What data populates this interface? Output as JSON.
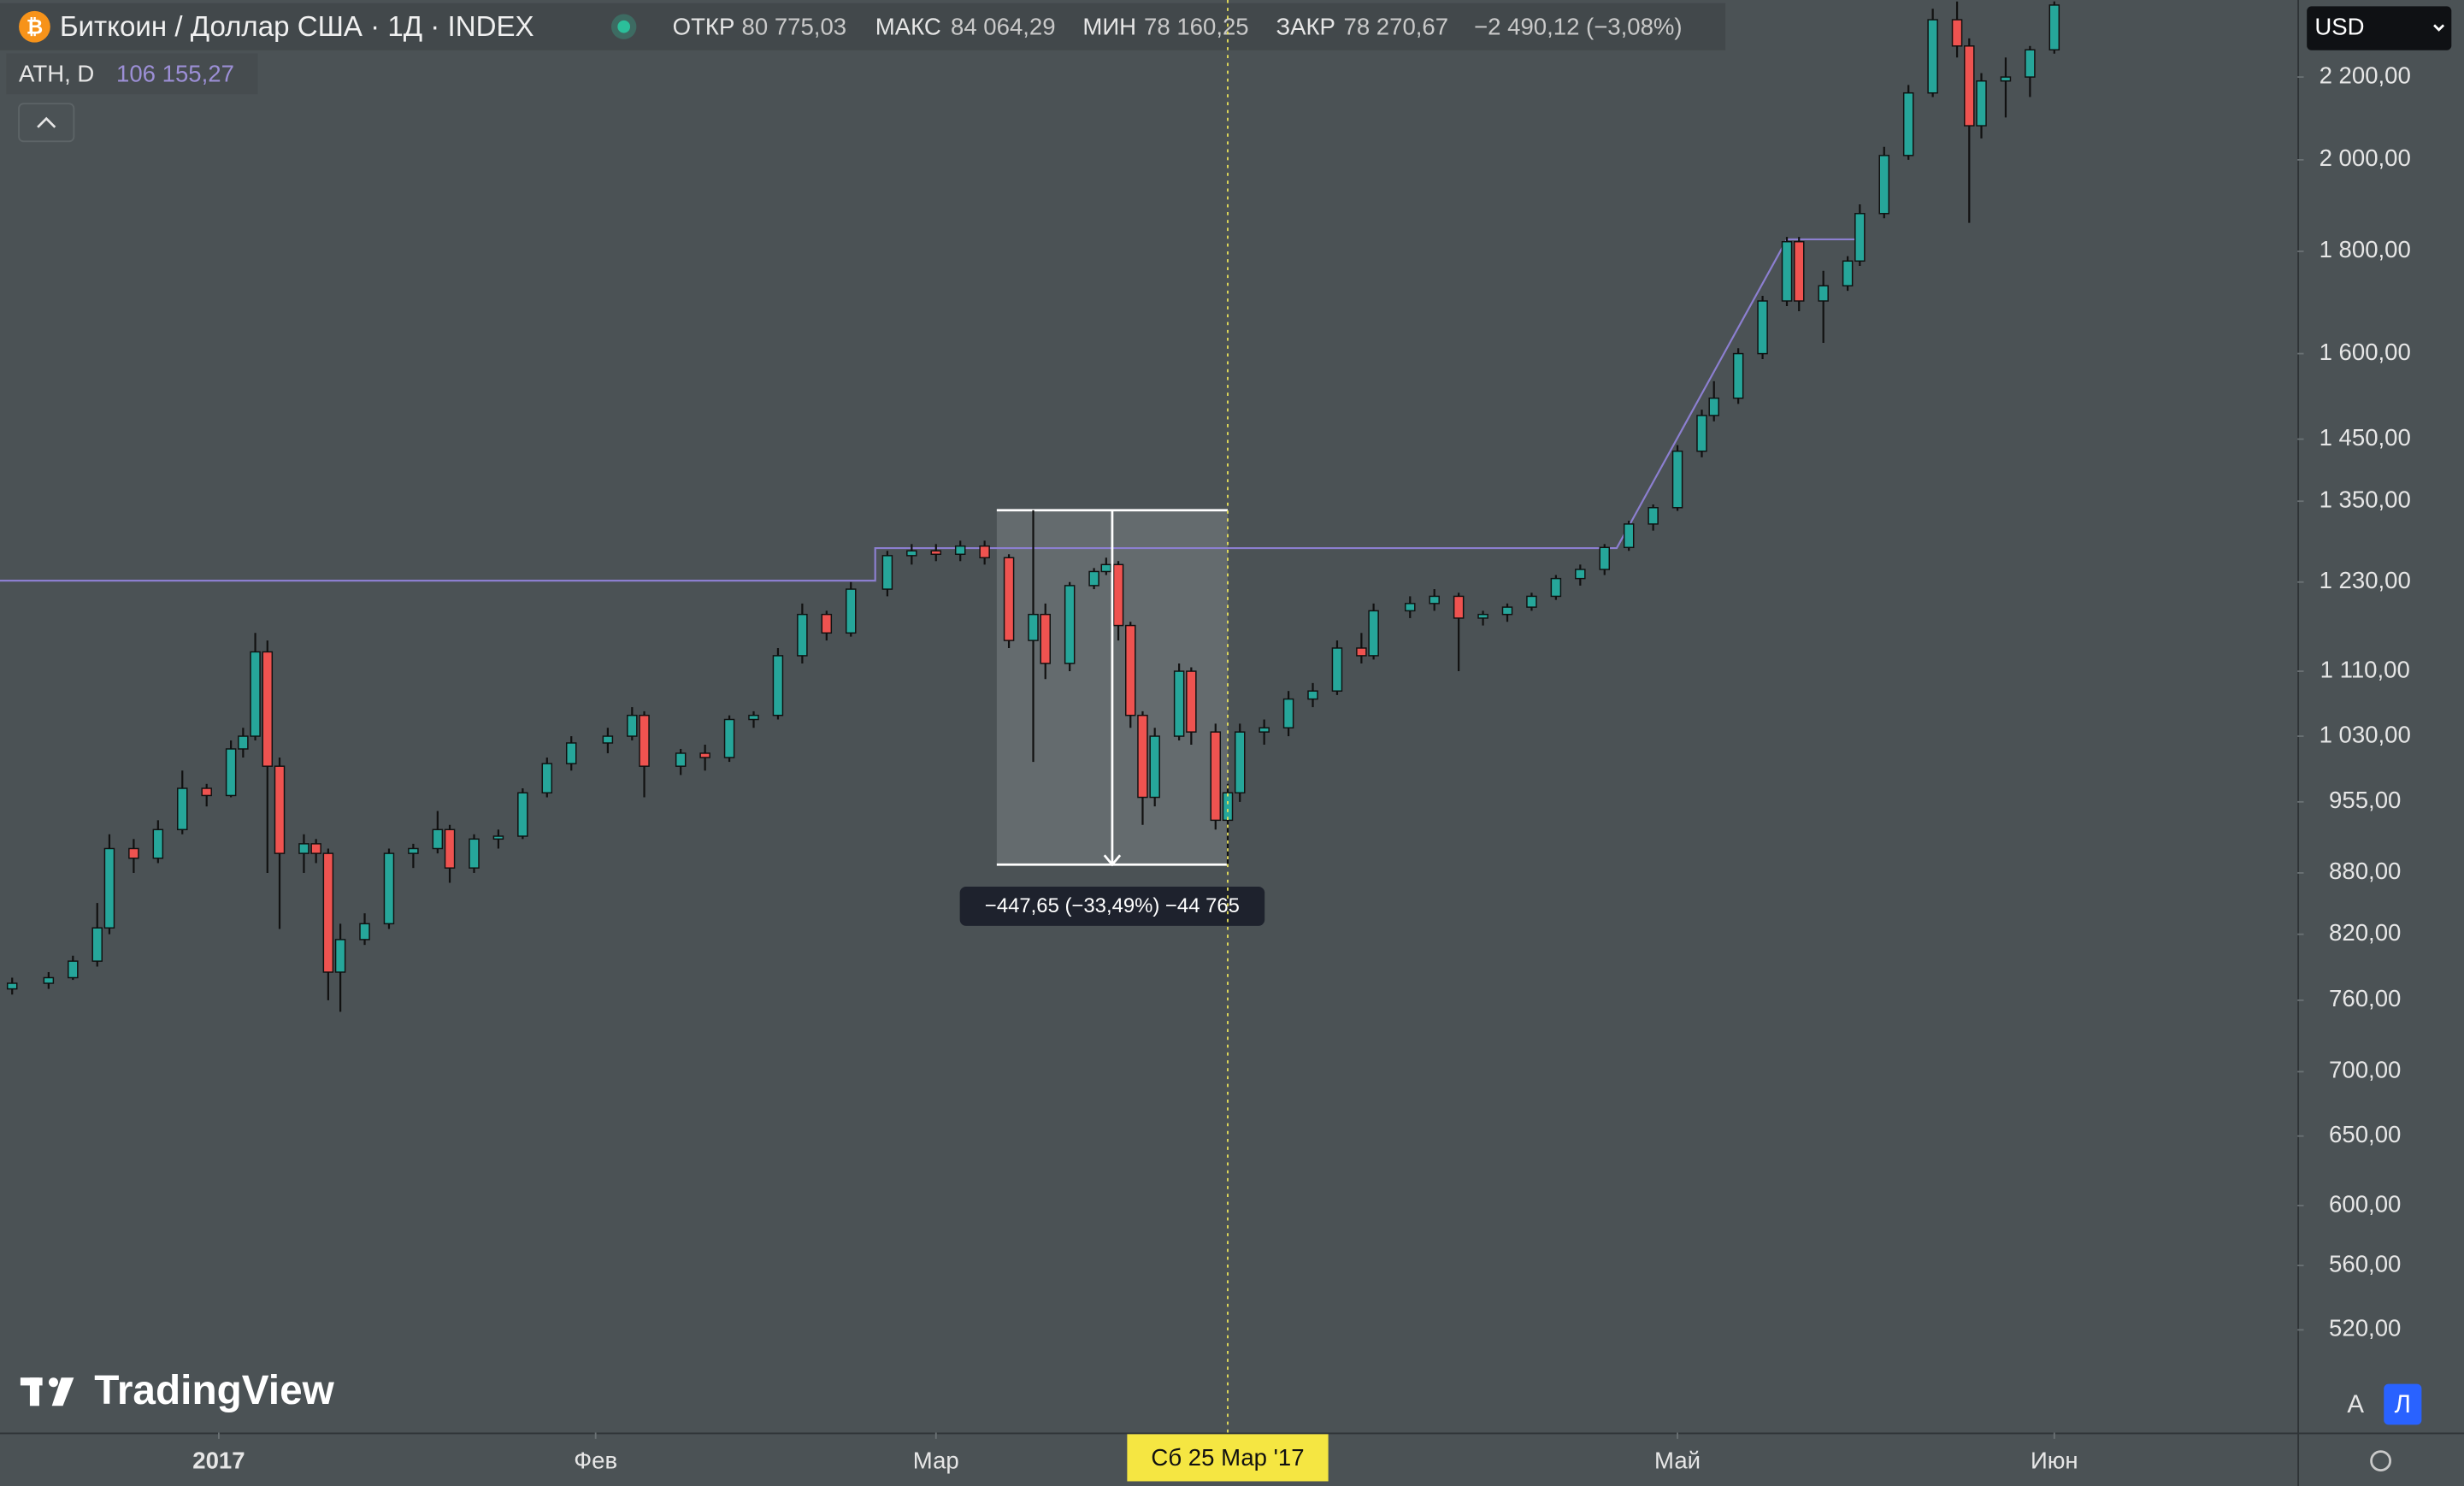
{
  "header": {
    "title": "Биткоин / Доллар США · 1Д · INDEX",
    "open_label": "ОТКР",
    "open": "80 775,03",
    "high_label": "МАКС",
    "high": "84 064,29",
    "low_label": "МИН",
    "low": "78 160,25",
    "close_label": "ЗАКР",
    "close": "78 270,67",
    "change": "−2 490,12 (−3,08%)",
    "indicator": "ATH, D",
    "indicator_value": "106 155,27",
    "currency": "USD",
    "logo": "TradingView",
    "auto": "A",
    "log": "Л"
  },
  "chart_data": {
    "type": "candlestick",
    "log_scale": true,
    "up_color": "#26a69a",
    "down_color": "#ef5350",
    "xlim": [
      "2016-12-14",
      "2017-06-21"
    ],
    "xticks": [
      {
        "value": "2017-01-01",
        "label": "2017"
      },
      {
        "value": "2017-02-01",
        "label": "Фев"
      },
      {
        "value": "2017-03-01",
        "label": "Мар"
      },
      {
        "value": "2017-05-01",
        "label": "Май"
      },
      {
        "value": "2017-06-01",
        "label": "Июн"
      }
    ],
    "ylim": [
      462,
      2404
    ],
    "yticks": [
      {
        "value": 2200,
        "label": "2 200,00"
      },
      {
        "value": 2000,
        "label": "2 000,00"
      },
      {
        "value": 1800,
        "label": "1 800,00"
      },
      {
        "value": 1600,
        "label": "1 600,00"
      },
      {
        "value": 1450,
        "label": "1 450,00"
      },
      {
        "value": 1350,
        "label": "1 350,00"
      },
      {
        "value": 1230,
        "label": "1 230,00"
      },
      {
        "value": 1110,
        "label": "1 110,00"
      },
      {
        "value": 1030,
        "label": "1 030,00"
      },
      {
        "value": 955,
        "label": "955,00"
      },
      {
        "value": 880,
        "label": "880,00"
      },
      {
        "value": 820,
        "label": "820,00"
      },
      {
        "value": 760,
        "label": "760,00"
      },
      {
        "value": 700,
        "label": "700,00"
      },
      {
        "value": 650,
        "label": "650,00"
      },
      {
        "value": 600,
        "label": "600,00"
      },
      {
        "value": 560,
        "label": "560,00"
      },
      {
        "value": 520,
        "label": "520,00"
      }
    ],
    "x": [
      "2016-12-15",
      "2016-12-18",
      "2016-12-20",
      "2016-12-22",
      "2016-12-23",
      "2016-12-25",
      "2016-12-27",
      "2016-12-29",
      "2016-12-31",
      "2017-01-02",
      "2017-01-03",
      "2017-01-04",
      "2017-01-05",
      "2017-01-06",
      "2017-01-08",
      "2017-01-09",
      "2017-01-10",
      "2017-01-11",
      "2017-01-13",
      "2017-01-15",
      "2017-01-17",
      "2017-01-19",
      "2017-01-20",
      "2017-01-22",
      "2017-01-24",
      "2017-01-26",
      "2017-01-28",
      "2017-01-30",
      "2017-02-02",
      "2017-02-04",
      "2017-02-05",
      "2017-02-08",
      "2017-02-10",
      "2017-02-12",
      "2017-02-14",
      "2017-02-16",
      "2017-02-18",
      "2017-02-20",
      "2017-02-22",
      "2017-02-25",
      "2017-02-27",
      "2017-03-01",
      "2017-03-03",
      "2017-03-05",
      "2017-03-07",
      "2017-03-09",
      "2017-03-10",
      "2017-03-12",
      "2017-03-14",
      "2017-03-15",
      "2017-03-16",
      "2017-03-17",
      "2017-03-18",
      "2017-03-19",
      "2017-03-21",
      "2017-03-22",
      "2017-03-24",
      "2017-03-25",
      "2017-03-26",
      "2017-03-28",
      "2017-03-30",
      "2017-04-01",
      "2017-04-03",
      "2017-04-05",
      "2017-04-06",
      "2017-04-09",
      "2017-04-11",
      "2017-04-13",
      "2017-04-15",
      "2017-04-17",
      "2017-04-19",
      "2017-04-21",
      "2017-04-23",
      "2017-04-25",
      "2017-04-27",
      "2017-04-29",
      "2017-05-01",
      "2017-05-03",
      "2017-05-04",
      "2017-05-06",
      "2017-05-08",
      "2017-05-10",
      "2017-05-11",
      "2017-05-13",
      "2017-05-15",
      "2017-05-16",
      "2017-05-18",
      "2017-05-20",
      "2017-05-22",
      "2017-05-24",
      "2017-05-25",
      "2017-05-26",
      "2017-05-28",
      "2017-05-30",
      "2017-06-01"
    ],
    "open": [
      770,
      775,
      780,
      795,
      826,
      905,
      895,
      925,
      970,
      962,
      1015,
      1030,
      1135,
      995,
      900,
      910,
      900,
      785,
      815,
      830,
      900,
      905,
      925,
      885,
      915,
      918,
      965,
      998,
      1022,
      1030,
      1055,
      995,
      1010,
      1005,
      1050,
      1055,
      1130,
      1185,
      1160,
      1220,
      1268,
      1275,
      1270,
      1282,
      1265,
      1150,
      1185,
      1120,
      1225,
      1245,
      1255,
      1170,
      1055,
      960,
      1030,
      1110,
      1035,
      935,
      965,
      1035,
      1040,
      1075,
      1085,
      1140,
      1130,
      1190,
      1200,
      1210,
      1180,
      1185,
      1195,
      1210,
      1235,
      1248,
      1280,
      1315,
      1340,
      1430,
      1490,
      1520,
      1600,
      1700,
      1820,
      1700,
      1730,
      1780,
      1880,
      2010,
      2160,
      2350,
      2280,
      2080,
      2190,
      2200,
      2270
    ],
    "high": [
      780,
      785,
      800,
      850,
      920,
      915,
      935,
      990,
      975,
      1025,
      1040,
      1160,
      1150,
      1005,
      920,
      915,
      905,
      830,
      840,
      905,
      910,
      945,
      930,
      920,
      925,
      970,
      1005,
      1030,
      1040,
      1065,
      1060,
      1015,
      1020,
      1055,
      1060,
      1140,
      1200,
      1190,
      1230,
      1275,
      1285,
      1285,
      1290,
      1290,
      1270,
      1336,
      1200,
      1230,
      1250,
      1265,
      1260,
      1175,
      1060,
      1040,
      1120,
      1115,
      1045,
      975,
      1045,
      1050,
      1085,
      1095,
      1150,
      1160,
      1200,
      1210,
      1220,
      1215,
      1190,
      1200,
      1215,
      1240,
      1255,
      1285,
      1320,
      1345,
      1440,
      1500,
      1550,
      1610,
      1710,
      1830,
      1830,
      1760,
      1790,
      1900,
      2030,
      2180,
      2380,
      2400,
      2300,
      2210,
      2250,
      2280,
      2400
    ],
    "low": [
      765,
      770,
      778,
      790,
      820,
      880,
      890,
      920,
      950,
      960,
      1005,
      1025,
      880,
      825,
      880,
      890,
      760,
      750,
      810,
      825,
      885,
      900,
      870,
      880,
      905,
      915,
      960,
      990,
      1010,
      1025,
      960,
      985,
      990,
      1000,
      1040,
      1050,
      1120,
      1150,
      1155,
      1210,
      1255,
      1260,
      1260,
      1255,
      1140,
      1000,
      1100,
      1110,
      1220,
      1240,
      1150,
      1040,
      930,
      950,
      1025,
      1020,
      925,
      888,
      955,
      1020,
      1030,
      1065,
      1080,
      1120,
      1125,
      1180,
      1190,
      1110,
      1170,
      1175,
      1190,
      1205,
      1225,
      1240,
      1275,
      1305,
      1335,
      1420,
      1480,
      1510,
      1590,
      1690,
      1680,
      1620,
      1720,
      1770,
      1870,
      2000,
      2150,
      2250,
      1860,
      2050,
      2100,
      2150,
      2260
    ],
    "close": [
      775,
      780,
      795,
      826,
      905,
      895,
      925,
      970,
      962,
      1015,
      1030,
      1135,
      995,
      900,
      910,
      900,
      785,
      815,
      830,
      900,
      905,
      925,
      885,
      915,
      918,
      965,
      998,
      1022,
      1030,
      1055,
      995,
      1010,
      1005,
      1050,
      1055,
      1130,
      1185,
      1160,
      1220,
      1268,
      1275,
      1270,
      1282,
      1265,
      1150,
      1185,
      1120,
      1225,
      1245,
      1255,
      1170,
      1055,
      960,
      1030,
      1110,
      1035,
      935,
      965,
      1035,
      1040,
      1075,
      1085,
      1140,
      1130,
      1190,
      1200,
      1210,
      1180,
      1185,
      1195,
      1210,
      1235,
      1248,
      1280,
      1315,
      1340,
      1430,
      1490,
      1520,
      1600,
      1700,
      1820,
      1700,
      1730,
      1780,
      1880,
      2010,
      2160,
      2350,
      2280,
      2080,
      2190,
      2200,
      2270,
      2390
    ],
    "ath": {
      "color": "#8c7fd0",
      "x": [
        "2016-12-14",
        "2017-02-24",
        "2017-02-24",
        "2017-04-26",
        "2017-05-10",
        "2017-05-16"
      ],
      "values": [
        1232,
        1232,
        1279,
        1279,
        1825,
        1825
      ]
    },
    "measure": {
      "from": "2017-03-06",
      "to": "2017-03-25",
      "top": 1336.08,
      "bottom": 888.43,
      "label": "−447,65 (−33,49%) −44 765"
    },
    "crosshair": {
      "date": "2017-03-25",
      "label": "Сб 25 Мар '17"
    }
  }
}
